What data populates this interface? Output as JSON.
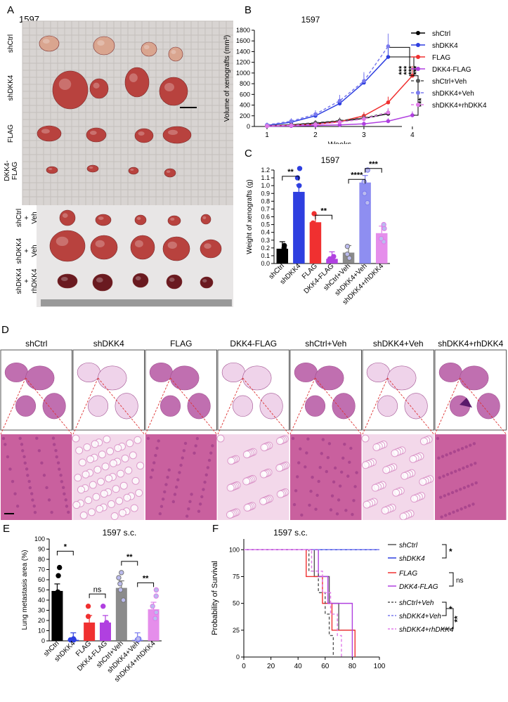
{
  "panel_letters": {
    "A": "A",
    "B": "B",
    "C": "C",
    "D": "D",
    "E": "E",
    "F": "F"
  },
  "panel_a": {
    "title": "1597",
    "row_labels": [
      "shCtrl",
      "shDKK4",
      "FLAG",
      "DKK4-\nFLAG",
      "shCtrl\n+\nVeh",
      "shDKK4\n+\nVeh",
      "shDKK4\n+\nrhDKK4"
    ],
    "colors": {
      "gauze": "#d8d4d2",
      "tumor_small": "#d9a58f",
      "tumor_big": "#b8423e",
      "dark_tumor": "#6a1a20"
    }
  },
  "chart_data": [
    {
      "id": "B",
      "type": "line",
      "title": "1597",
      "xlabel": "Weeks",
      "ylabel": "Volume of xenografts (mm³)",
      "x": [
        1,
        1.5,
        2,
        2.5,
        3,
        3.5,
        4
      ],
      "xticks": [
        1,
        2,
        3,
        4
      ],
      "yticks": [
        0,
        200,
        400,
        600,
        800,
        1000,
        1200,
        1400,
        1600,
        1800
      ],
      "ylim": [
        0,
        1800
      ],
      "series": [
        {
          "name": "shCtrl",
          "color": "#000000",
          "dash": false,
          "x": [
            1,
            1.5,
            2,
            2.5,
            3,
            3.5
          ],
          "values": [
            15,
            30,
            60,
            100,
            150,
            240
          ]
        },
        {
          "name": "shDKK4",
          "color": "#2e3fe0",
          "dash": false,
          "x": [
            1,
            1.5,
            2,
            2.5,
            3,
            3.5
          ],
          "values": [
            20,
            80,
            200,
            430,
            820,
            1300
          ]
        },
        {
          "name": "FLAG",
          "color": "#f03030",
          "dash": false,
          "x": [
            1,
            1.5,
            2,
            2.5,
            3,
            3.5,
            4
          ],
          "values": [
            10,
            20,
            40,
            90,
            200,
            450,
            950
          ]
        },
        {
          "name": "DKK4-FLAG",
          "color": "#b040e0",
          "dash": false,
          "x": [
            1,
            1.5,
            2,
            2.5,
            3,
            3.5,
            4
          ],
          "values": [
            5,
            10,
            20,
            30,
            50,
            100,
            210
          ]
        },
        {
          "name": "shCtrl+Veh",
          "color": "#555555",
          "dash": true,
          "x": [
            1,
            1.5,
            2,
            2.5,
            3,
            3.5
          ],
          "values": [
            15,
            35,
            70,
            110,
            160,
            260
          ]
        },
        {
          "name": "shDKK4+Veh",
          "color": "#7a7aee",
          "dash": true,
          "x": [
            1,
            1.5,
            2,
            2.5,
            3,
            3.5
          ],
          "values": [
            30,
            100,
            230,
            480,
            850,
            1500
          ]
        },
        {
          "name": "shDKK4+rhDKK4",
          "color": "#e07ae8",
          "dash": true,
          "x": [
            1,
            1.5,
            2,
            2.5,
            3,
            3.5
          ],
          "values": [
            10,
            20,
            40,
            80,
            140,
            260
          ]
        }
      ],
      "sig": [
        "***",
        "***",
        "***",
        "***"
      ],
      "sig2": "***"
    },
    {
      "id": "C",
      "type": "bar",
      "title": "1597",
      "ylabel": "Weight of xenografts (g)",
      "yticks": [
        0.0,
        0.1,
        0.2,
        0.3,
        0.4,
        0.5,
        0.6,
        0.7,
        0.8,
        0.9,
        1.0,
        1.1,
        1.2
      ],
      "ylim": [
        0,
        1.2
      ],
      "categories": [
        "shCtrl",
        "shDKK4",
        "FLAG",
        "DKK4-FLAG",
        "shCtrl+Veh",
        "shDKK4+Veh",
        "shDKK4+rhDKK4"
      ],
      "values": [
        0.19,
        0.92,
        0.53,
        0.06,
        0.14,
        1.04,
        0.39
      ],
      "colors": [
        "#000000",
        "#2e3fe0",
        "#f03030",
        "#b040e0",
        "#777777",
        "#7a7aee",
        "#e07ae8"
      ],
      "sig": [
        "**",
        "**",
        "****",
        "***"
      ]
    },
    {
      "id": "E",
      "type": "bar",
      "title": "1597 s.c.",
      "ylabel": "Lung metastasis area (%)",
      "yticks": [
        0,
        10,
        20,
        30,
        40,
        50,
        60,
        70,
        80,
        90,
        100
      ],
      "ylim": [
        0,
        100
      ],
      "categories": [
        "shCtrl",
        "shDKK4",
        "FLAG",
        "DKK4-FLAG",
        "shCtrl+Veh",
        "shDKK4+Veh",
        "shDKK4+rhDKK4"
      ],
      "values": [
        49,
        1,
        18,
        18,
        52,
        1,
        31
      ],
      "colors": [
        "#000000",
        "#2e3fe0",
        "#f03030",
        "#b040e0",
        "#777777",
        "#7a7aee",
        "#e07ae8"
      ],
      "sig": [
        "*",
        "ns",
        "**",
        "**"
      ]
    },
    {
      "id": "F",
      "type": "line",
      "title": "1597 s.c.",
      "ylabel": "Probability of Survival",
      "xticks": [
        0,
        20,
        40,
        60,
        80,
        100
      ],
      "yticks": [
        0,
        25,
        50,
        75,
        100
      ],
      "xlim": [
        0,
        100
      ],
      "ylim": [
        0,
        110
      ],
      "legend": [
        "shCtrl",
        "shDKK4",
        "FLAG",
        "DKK4-FLAG",
        "shCtrl+Veh",
        "shDKK4+Veh",
        "shDKK4+rhDKK4"
      ],
      "sig": [
        "*",
        "ns",
        "*",
        "**"
      ]
    }
  ],
  "panel_d": {
    "labels": [
      "shCtrl",
      "shDKK4",
      "FLAG",
      "DKK4-FLAG",
      "shCtrl+Veh",
      "shDKK4+Veh",
      "shDKK4+rhDKK4"
    ],
    "tissue_color": "#c9609e",
    "stroma_color": "#f3d8ea"
  }
}
